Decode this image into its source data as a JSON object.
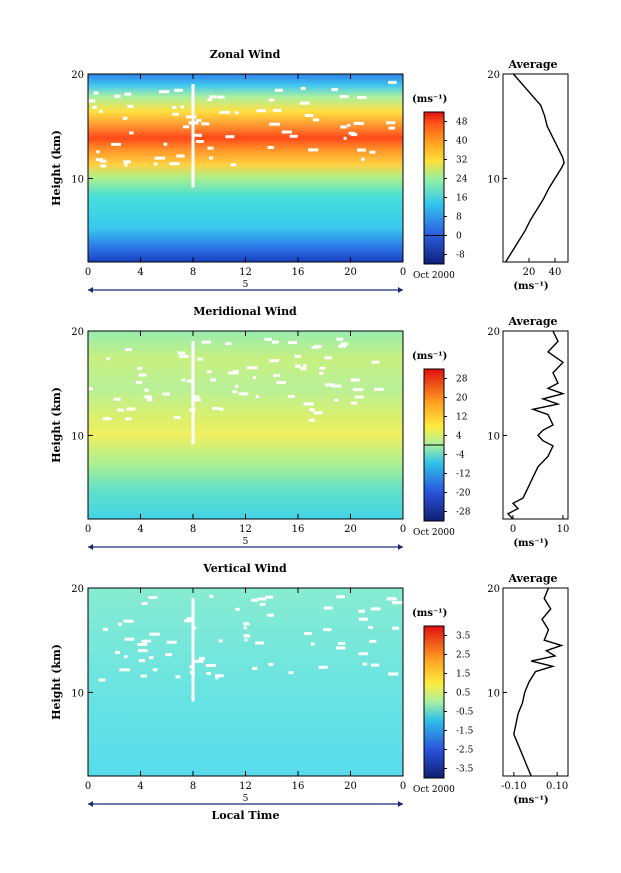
{
  "panel_titles": [
    "Zonal Wind",
    "Meridional Wind",
    "Vertical Wind"
  ],
  "chart_data": [
    {
      "type": "heatmap",
      "title": "Zonal Wind",
      "ylabel": "Height (km)",
      "x_ticks": [
        "0",
        "4",
        "8",
        "12",
        "16",
        "20",
        "0"
      ],
      "y_ticks": [
        "20",
        "10"
      ],
      "date_marker": "5",
      "date_label": "Oct 2000",
      "xlim": [
        0,
        24
      ],
      "ylim": [
        2,
        20
      ],
      "colorbar": {
        "unit_label": "(ms⁻¹)",
        "ticks": [
          "48",
          "40",
          "32",
          "24",
          "16",
          "8",
          "0",
          "-8"
        ],
        "range": [
          -12,
          52
        ],
        "zero_line": 0
      },
      "profile": {
        "title": "Average",
        "xlabel": "(ms⁻¹)",
        "x_ticks": [
          "20",
          "40"
        ],
        "xlim": [
          0,
          50
        ],
        "y_ticks": [
          "20",
          "10"
        ],
        "heights": [
          2,
          3,
          4,
          5,
          6,
          7,
          8,
          9,
          10,
          11,
          11.5,
          12,
          12.5,
          13,
          14,
          15,
          16,
          17,
          18,
          19,
          20
        ],
        "values": [
          2,
          7,
          12,
          17,
          21,
          26,
          31,
          35,
          40,
          45,
          47,
          46,
          44,
          42,
          38,
          34,
          32,
          29,
          22,
          15,
          8
        ]
      }
    },
    {
      "type": "heatmap",
      "title": "Meridional Wind",
      "ylabel": "Height (km)",
      "x_ticks": [
        "0",
        "4",
        "8",
        "12",
        "16",
        "20",
        "0"
      ],
      "y_ticks": [
        "20",
        "10"
      ],
      "date_marker": "5",
      "date_label": "Oct 2000",
      "xlim": [
        0,
        24
      ],
      "ylim": [
        2,
        20
      ],
      "colorbar": {
        "unit_label": "(ms⁻¹)",
        "ticks": [
          "28",
          "20",
          "12",
          "4",
          "-4",
          "-12",
          "-20",
          "-28"
        ],
        "range": [
          -32,
          32
        ],
        "zero_line": 0
      },
      "profile": {
        "title": "Average",
        "xlabel": "(ms⁻¹)",
        "x_ticks": [
          "0",
          "10"
        ],
        "xlim": [
          -2,
          11
        ],
        "y_ticks": [
          "20",
          "10"
        ],
        "heights": [
          2,
          2.5,
          3,
          3.5,
          4,
          5,
          6,
          7,
          8,
          9,
          9.5,
          10,
          10.5,
          11,
          12,
          12.5,
          13,
          13.5,
          14,
          14.5,
          15,
          16,
          17,
          18,
          19,
          20
        ],
        "values": [
          0,
          -1,
          1,
          0,
          2,
          3,
          4,
          5,
          7,
          8,
          6,
          5,
          6,
          8,
          7,
          4,
          9,
          6,
          10,
          7,
          9,
          8,
          10,
          7,
          9,
          8
        ]
      }
    },
    {
      "type": "heatmap",
      "title": "Vertical Wind",
      "xlabel": "Local Time",
      "ylabel": "Height (km)",
      "x_ticks": [
        "0",
        "4",
        "8",
        "12",
        "16",
        "20",
        "0"
      ],
      "y_ticks": [
        "20",
        "10"
      ],
      "date_marker": "5",
      "date_label": "Oct 2000",
      "xlim": [
        0,
        24
      ],
      "ylim": [
        2,
        20
      ],
      "colorbar": {
        "unit_label": "(ms⁻¹)",
        "ticks": [
          "3.5",
          "2.5",
          "1.5",
          "0.5",
          "-0.5",
          "-1.5",
          "-2.5",
          "-3.5"
        ],
        "range": [
          -4,
          4
        ]
      },
      "profile": {
        "title": "Average",
        "xlabel": "(ms⁻¹)",
        "x_ticks": [
          "-0.10",
          "0.10"
        ],
        "xlim": [
          -0.15,
          0.15
        ],
        "y_ticks": [
          "20",
          "10"
        ],
        "heights": [
          2,
          3,
          4,
          5,
          6,
          7,
          8,
          9,
          10,
          11,
          12,
          12.5,
          13,
          13.5,
          14,
          14.5,
          15,
          16,
          17,
          18,
          19,
          20
        ],
        "values": [
          -0.02,
          -0.04,
          -0.06,
          -0.08,
          -0.1,
          -0.09,
          -0.08,
          -0.06,
          -0.05,
          -0.03,
          0.0,
          0.08,
          -0.02,
          0.09,
          0.05,
          0.12,
          0.04,
          0.06,
          0.03,
          0.07,
          0.04,
          0.06
        ]
      }
    }
  ]
}
